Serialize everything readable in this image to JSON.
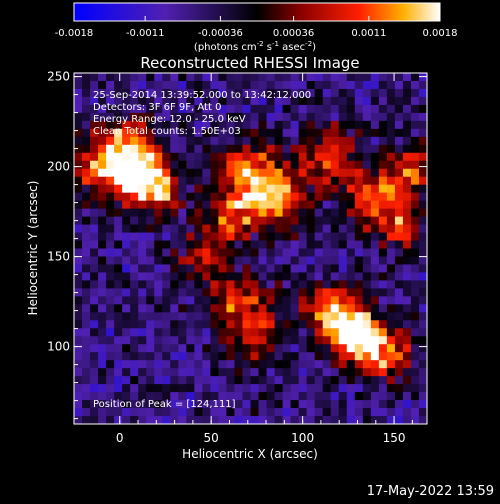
{
  "chart_data": {
    "type": "heatmap",
    "title": "Reconstructed RHESSI Image",
    "xlabel": "Heliocentric X (arcsec)",
    "ylabel": "Heliocentric Y (arcsec)",
    "xlim": [
      -25,
      168
    ],
    "ylim": [
      57,
      252
    ],
    "xticks": [
      0,
      50,
      100,
      150
    ],
    "yticks": [
      100,
      150,
      200,
      250
    ],
    "colorbar": {
      "label": "(photons cm",
      "label_sup1": "-2",
      "label_mid": " s",
      "label_sup2": "-1",
      "label_mid2": " asec",
      "label_sup3": "-2",
      "label_end": ")",
      "ticks": [
        "-0.0018",
        "-0.0011",
        "-0.00036",
        "0.00036",
        "0.0011",
        "0.0018"
      ],
      "range": [
        -0.0018,
        0.0018
      ]
    },
    "annotations": [
      "25-Sep-2014 13:39:52.000 to 13:42:12.000",
      "Detectors: 3F 6F 9F, Att 0",
      "Energy Range: 12.0 - 25.0 keV",
      "Clean     Total counts: 1.50E+03"
    ],
    "peak_label": "Position of Peak = [124,111]",
    "peak": [
      124,
      111
    ],
    "grid": false,
    "colors": {
      "low": "#0000ff",
      "mid": "#6a2a90",
      "high": "#ffffff",
      "hot": "#ff3000"
    }
  },
  "footer": {
    "timestamp": "17-May-2022 13:59"
  }
}
